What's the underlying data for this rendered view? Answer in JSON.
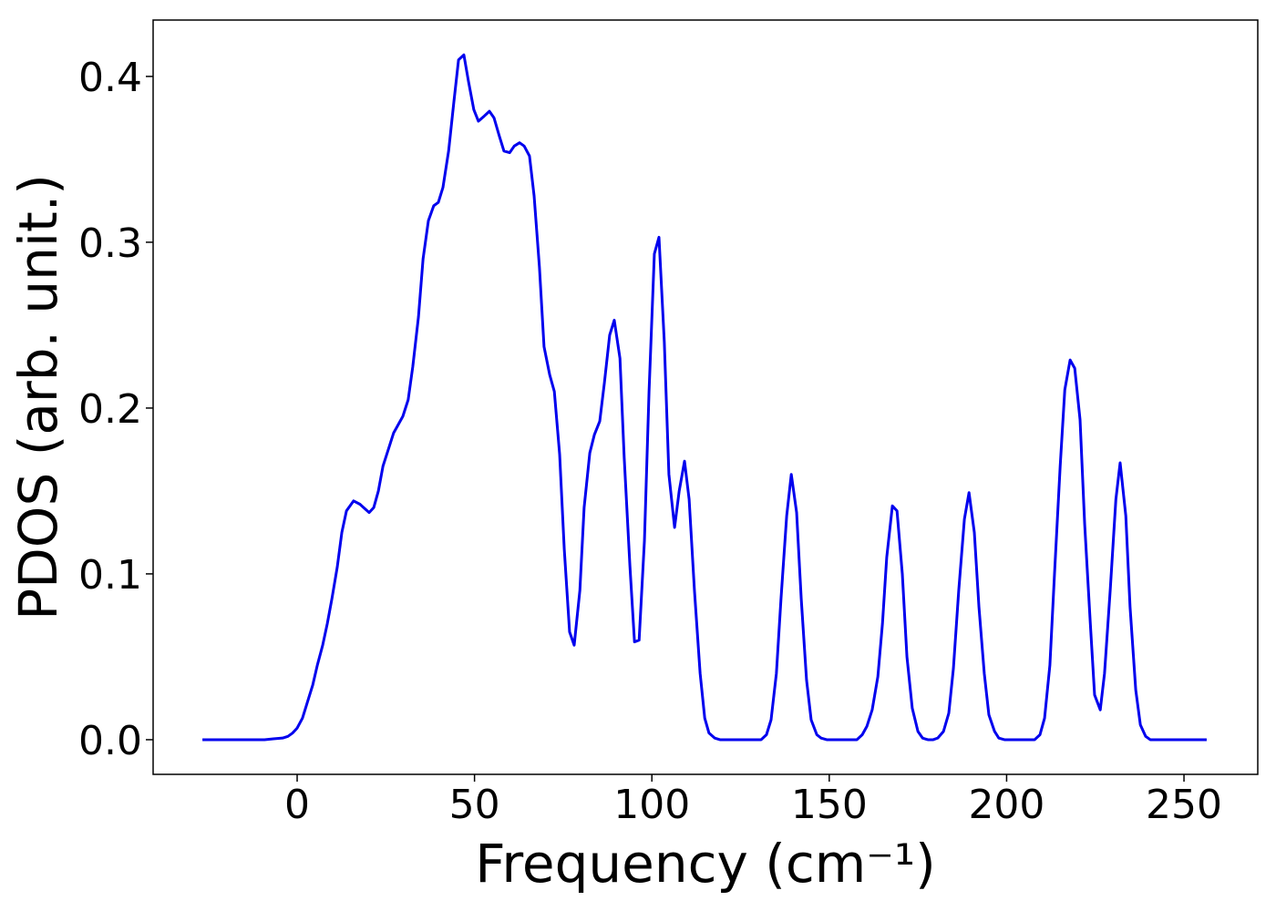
{
  "chart_data": {
    "type": "line",
    "xlabel": "Frequency (cm⁻¹)",
    "ylabel": "PDOS (arb. unit.)",
    "xlim": [
      -40.6,
      270.8
    ],
    "ylim": [
      -0.0209,
      0.434
    ],
    "xticks": [
      0,
      50,
      100,
      150,
      200,
      250
    ],
    "yticks": [
      {
        "value": 0,
        "label": "0.0"
      },
      0.1,
      0.2,
      0.3,
      0.4
    ],
    "x": [
      -26.7,
      -9.2,
      -6.7,
      -4.1,
      -2.6,
      -1.3,
      0,
      1.5,
      2.8,
      4.4,
      5.7,
      7.2,
      8.5,
      9.8,
      11.3,
      12.6,
      13.9,
      15.9,
      17.7,
      20.3,
      21.6,
      22.9,
      24.2,
      26,
      27.2,
      29.8,
      31.3,
      32.6,
      34.2,
      35.5,
      37,
      38.5,
      39.8,
      41.1,
      42.7,
      44.2,
      45.5,
      47,
      48.3,
      49.8,
      51.1,
      52.7,
      54.2,
      55.5,
      57,
      58.3,
      59.9,
      61.2,
      62.7,
      64,
      65.5,
      66.8,
      68.3,
      69.6,
      71.2,
      72.5,
      74,
      75.3,
      76.8,
      78.1,
      79.7,
      80.9,
      82.5,
      83.8,
      85.3,
      86.6,
      88.1,
      89.4,
      91,
      92.2,
      93.8,
      95.1,
      96.4,
      97.9,
      99.2,
      100.7,
      102,
      103.5,
      104.8,
      106.4,
      107.7,
      109.2,
      110.5,
      112,
      113.6,
      114.9,
      116.1,
      117.7,
      119.2,
      130.8,
      132.3,
      133.6,
      135.1,
      136.4,
      138,
      139.3,
      140.8,
      142.1,
      143.6,
      144.9,
      146.5,
      147.7,
      149.3,
      157.8,
      159.3,
      160.6,
      162.1,
      163.7,
      165,
      166.2,
      167.8,
      169.1,
      170.6,
      171.9,
      173.4,
      175,
      176.3,
      177.8,
      179.3,
      180.6,
      182.2,
      183.7,
      185,
      186.5,
      188.1,
      189.4,
      190.9,
      192.2,
      193.7,
      195,
      196.6,
      197.8,
      199.4,
      207.9,
      209.4,
      210.7,
      212.2,
      213.5,
      215.1,
      216.4,
      217.9,
      219.2,
      220.7,
      222,
      223.6,
      224.8,
      226.4,
      227.6,
      229.2,
      230.8,
      232,
      233.6,
      234.8,
      236.4,
      237.7,
      239.2,
      240.5,
      256.4
    ],
    "series": [
      {
        "color": "#0000ee",
        "values": [
          0,
          0,
          0.0005,
          0.001,
          0.002,
          0.004,
          0.007,
          0.013,
          0.022,
          0.033,
          0.045,
          0.057,
          0.07,
          0.085,
          0.104,
          0.125,
          0.138,
          0.144,
          0.142,
          0.137,
          0.14,
          0.15,
          0.165,
          0.177,
          0.185,
          0.195,
          0.205,
          0.225,
          0.255,
          0.29,
          0.313,
          0.322,
          0.324,
          0.333,
          0.355,
          0.385,
          0.41,
          0.413,
          0.397,
          0.38,
          0.373,
          0.376,
          0.379,
          0.375,
          0.364,
          0.355,
          0.354,
          0.358,
          0.36,
          0.358,
          0.352,
          0.328,
          0.285,
          0.237,
          0.22,
          0.21,
          0.172,
          0.115,
          0.065,
          0.057,
          0.09,
          0.14,
          0.173,
          0.184,
          0.192,
          0.215,
          0.244,
          0.253,
          0.23,
          0.17,
          0.105,
          0.059,
          0.06,
          0.12,
          0.21,
          0.293,
          0.303,
          0.24,
          0.16,
          0.128,
          0.15,
          0.168,
          0.145,
          0.09,
          0.04,
          0.013,
          0.004,
          0.001,
          0,
          0,
          0.003,
          0.012,
          0.04,
          0.085,
          0.135,
          0.16,
          0.137,
          0.085,
          0.036,
          0.012,
          0.003,
          0.001,
          0,
          0,
          0.003,
          0.008,
          0.018,
          0.038,
          0.07,
          0.11,
          0.141,
          0.138,
          0.1,
          0.05,
          0.019,
          0.005,
          0.001,
          0,
          0,
          0.001,
          0.005,
          0.016,
          0.043,
          0.09,
          0.133,
          0.149,
          0.125,
          0.08,
          0.04,
          0.015,
          0.005,
          0.001,
          0,
          0,
          0.003,
          0.013,
          0.045,
          0.1,
          0.165,
          0.211,
          0.229,
          0.224,
          0.193,
          0.13,
          0.07,
          0.027,
          0.018,
          0.04,
          0.09,
          0.145,
          0.167,
          0.135,
          0.08,
          0.03,
          0.009,
          0.002,
          0,
          0
        ]
      }
    ]
  }
}
